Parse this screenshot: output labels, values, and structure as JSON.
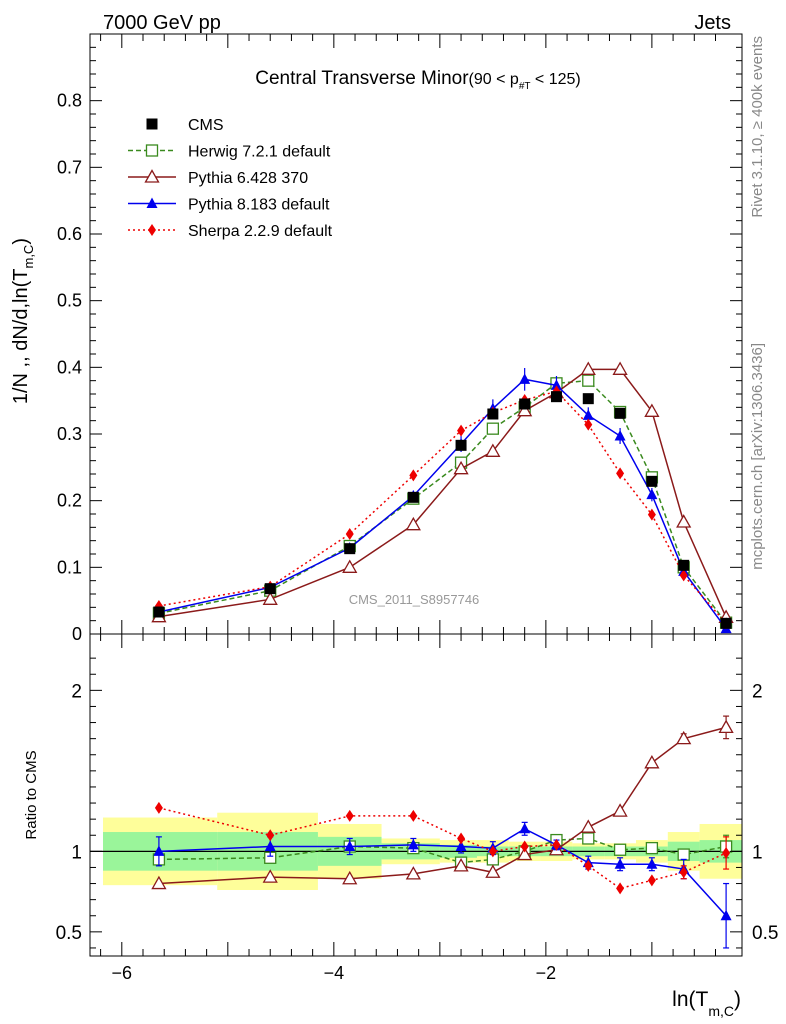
{
  "header": {
    "left": "7000 GeV pp",
    "right": "Jets",
    "side_top": "Rivet 3.1.10, ≥ 400k events",
    "side_bottom": "mcplots.cern.ch [arXiv:1306.3436]",
    "watermark": "CMS_2011_S8957746"
  },
  "chart_data": [
    {
      "type": "line",
      "title": "Central Transverse Minor",
      "title_range": "(90 < p",
      "title_range_sub": "#T",
      "title_range_end": " < 125)",
      "ylabel_main": "1/N ,, dN/d,ln(T",
      "ylabel_sub": "m,C",
      "ylabel_end": ")",
      "xlabel_main": "ln(T",
      "xlabel_sub": "m,C",
      "xlabel_end": ")",
      "xlim": [
        -6.3,
        -0.15
      ],
      "ylim": [
        0,
        0.9
      ],
      "yticks": [
        0,
        0.1,
        0.2,
        0.3,
        0.4,
        0.5,
        0.6,
        0.7,
        0.8
      ],
      "ytick_labels": [
        "0",
        "0.1",
        "0.2",
        "0.3",
        "0.4",
        "0.5",
        "0.6",
        "0.7",
        "0.8"
      ],
      "xticks": [
        -6,
        -4,
        -2
      ],
      "xtick_labels": [
        "−6",
        "−4",
        "−2"
      ],
      "x": [
        -5.65,
        -4.6,
        -3.85,
        -3.25,
        -2.8,
        -2.5,
        -2.2,
        -1.9,
        -1.6,
        -1.3,
        -1.0,
        -0.7,
        -0.3
      ],
      "series": [
        {
          "name": "CMS",
          "color": "#000000",
          "marker": "square-filled",
          "line": "none",
          "values": [
            0.033,
            0.068,
            0.128,
            0.205,
            0.283,
            0.33,
            0.345,
            0.356,
            0.353,
            0.331,
            0.229,
            0.103,
            0.016
          ],
          "errors": [
            0.002,
            0.002,
            0.003,
            0.004,
            0.006,
            0.007,
            0.007,
            0.007,
            0.007,
            0.006,
            0.005,
            0.003,
            0.002
          ]
        },
        {
          "name": "Herwig 7.2.1 default",
          "color": "#3a8a1e",
          "marker": "square-open",
          "line": "dashed",
          "values": [
            0.031,
            0.065,
            0.132,
            0.203,
            0.257,
            0.308,
            0.34,
            0.376,
            0.38,
            0.333,
            0.235,
            0.1,
            0.017
          ],
          "errors": [
            0.001,
            0.002,
            0.002,
            0.003,
            0.004,
            0.004,
            0.004,
            0.005,
            0.005,
            0.004,
            0.004,
            0.003,
            0.001
          ]
        },
        {
          "name": "Pythia 6.428 370",
          "color": "#8b1a1a",
          "marker": "triangle-open",
          "line": "solid",
          "values": [
            0.026,
            0.052,
            0.1,
            0.164,
            0.248,
            0.274,
            0.335,
            0.362,
            0.397,
            0.397,
            0.334,
            0.168,
            0.025
          ],
          "errors": [
            0.001,
            0.001,
            0.002,
            0.003,
            0.003,
            0.004,
            0.004,
            0.004,
            0.005,
            0.004,
            0.004,
            0.003,
            0.001
          ]
        },
        {
          "name": "Pythia 8.183 default",
          "color": "#0000ee",
          "marker": "triangle-filled",
          "line": "solid",
          "values": [
            0.033,
            0.07,
            0.129,
            0.207,
            0.285,
            0.338,
            0.382,
            0.373,
            0.328,
            0.297,
            0.209,
            0.094,
            0.008
          ],
          "errors": [
            0.004,
            0.003,
            0.005,
            0.008,
            0.012,
            0.014,
            0.017,
            0.014,
            0.012,
            0.012,
            0.01,
            0.007,
            0.004
          ]
        },
        {
          "name": "Sherpa 2.2.9 default",
          "color": "#ee0000",
          "marker": "diamond-filled",
          "line": "dotted",
          "values": [
            0.042,
            0.071,
            0.15,
            0.238,
            0.305,
            0.332,
            0.351,
            0.364,
            0.314,
            0.241,
            0.179,
            0.088,
            0.016
          ],
          "errors": [
            0.001,
            0.001,
            0.002,
            0.003,
            0.004,
            0.004,
            0.005,
            0.005,
            0.004,
            0.004,
            0.003,
            0.002,
            0.002
          ]
        }
      ],
      "legend": "top-left"
    },
    {
      "type": "line",
      "ylabel": "Ratio to CMS",
      "ylim": [
        0.35,
        2.35
      ],
      "yticks": [
        0.5,
        1,
        2
      ],
      "ytick_labels": [
        "0.5",
        "1",
        "2"
      ],
      "reference": 1,
      "bins": [
        {
          "lo": -6.3,
          "hi": -5.1,
          "stat": 0.12,
          "tot": 0.21
        },
        {
          "lo": -5.1,
          "hi": -4.15,
          "stat": 0.12,
          "tot": 0.24
        },
        {
          "lo": -4.15,
          "hi": -3.55,
          "stat": 0.09,
          "tot": 0.17
        },
        {
          "lo": -3.55,
          "hi": -3.0,
          "stat": 0.05,
          "tot": 0.08
        },
        {
          "lo": -3.0,
          "hi": -2.65,
          "stat": 0.04,
          "tot": 0.07
        },
        {
          "lo": -2.65,
          "hi": -2.35,
          "stat": 0.03,
          "tot": 0.07
        },
        {
          "lo": -2.35,
          "hi": -2.05,
          "stat": 0.03,
          "tot": 0.06
        },
        {
          "lo": -2.05,
          "hi": -1.75,
          "stat": 0.03,
          "tot": 0.06
        },
        {
          "lo": -1.75,
          "hi": -1.45,
          "stat": 0.03,
          "tot": 0.05
        },
        {
          "lo": -1.45,
          "hi": -1.15,
          "stat": 0.03,
          "tot": 0.05
        },
        {
          "lo": -1.15,
          "hi": -0.85,
          "stat": 0.03,
          "tot": 0.07
        },
        {
          "lo": -0.85,
          "hi": -0.55,
          "stat": 0.06,
          "tot": 0.12
        },
        {
          "lo": -0.55,
          "hi": -0.15,
          "stat": 0.07,
          "tot": 0.17
        }
      ],
      "series": [
        {
          "name": "Herwig 7.2.1 default",
          "values": [
            0.95,
            0.96,
            1.03,
            1.02,
            0.93,
            0.95,
            1.0,
            1.07,
            1.08,
            1.01,
            1.02,
            0.98,
            1.03
          ],
          "errors": [
            0,
            0,
            0,
            0,
            0,
            0,
            0,
            0,
            0,
            0,
            0,
            0,
            0.07
          ]
        },
        {
          "name": "Pythia 6.428 370",
          "values": [
            0.8,
            0.84,
            0.83,
            0.86,
            0.91,
            0.87,
            0.98,
            1.01,
            1.15,
            1.25,
            1.55,
            1.7,
            1.77
          ],
          "errors": [
            0,
            0,
            0,
            0,
            0,
            0,
            0,
            0,
            0,
            0,
            0,
            0.03,
            0.07
          ]
        },
        {
          "name": "Pythia 8.183 default",
          "values": [
            1.0,
            1.03,
            1.03,
            1.04,
            1.03,
            1.02,
            1.14,
            1.04,
            0.93,
            0.92,
            0.92,
            0.89,
            0.6
          ],
          "errors": [
            0.09,
            0.06,
            0.05,
            0.04,
            0.04,
            0.04,
            0.04,
            0.03,
            0.04,
            0.04,
            0.04,
            0.06,
            0.2
          ]
        },
        {
          "name": "Sherpa 2.2.9 default",
          "values": [
            1.27,
            1.1,
            1.22,
            1.22,
            1.08,
            1.0,
            1.03,
            1.04,
            0.91,
            0.77,
            0.82,
            0.87,
            0.99
          ],
          "errors": [
            0,
            0,
            0,
            0,
            0,
            0,
            0,
            0,
            0,
            0,
            0,
            0.04,
            0.1
          ]
        }
      ]
    }
  ]
}
